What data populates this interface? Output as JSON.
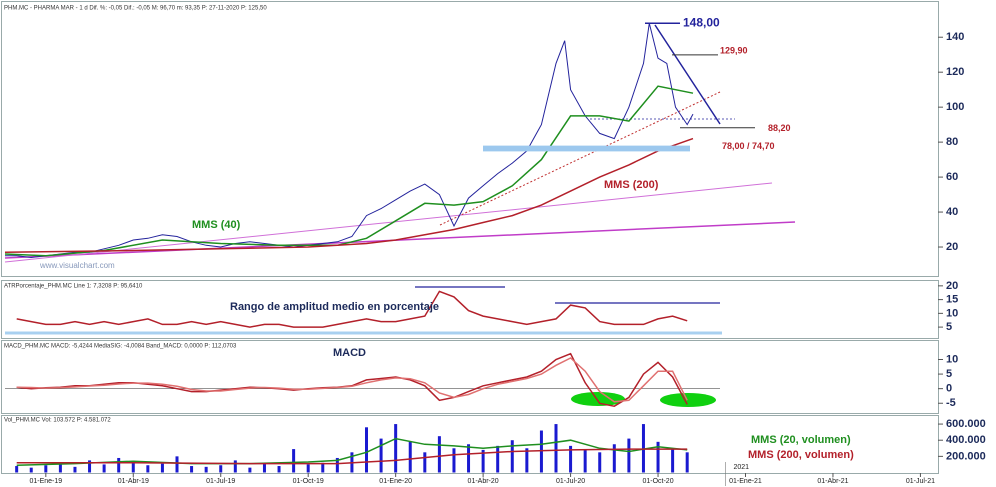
{
  "chart_data": [
    {
      "type": "line",
      "header": "PHM.MC - PHARMA MAR - 1 d Dif. %: -0,05 Dif.: -0,05 M: 96,70 m: 93,35 P: 27-11-2020 P: 125,50",
      "watermark": "www.visualchart.com",
      "ylim": [
        4,
        159
      ],
      "yticks": [
        20,
        40,
        60,
        80,
        100,
        120,
        140
      ],
      "series": [
        {
          "color": "#23239c",
          "x": [
            -1.4,
            -1,
            -0.5,
            0,
            0.5,
            1,
            1.5,
            2,
            2.5,
            3,
            3.5,
            4,
            4.5,
            5,
            5.5,
            6,
            6.5,
            7,
            7.5,
            8,
            8.5,
            9,
            9.5,
            10,
            10.5,
            11,
            11.5,
            12,
            12.5,
            13,
            13.5,
            14,
            14.5,
            15,
            15.5,
            16,
            16.5,
            17,
            17.5,
            17.8,
            18,
            18.5,
            19,
            19.5,
            20,
            20.5,
            20.7,
            21,
            21.3,
            21.6,
            22,
            22.2
          ],
          "values": [
            15,
            15,
            14,
            15,
            16,
            17,
            17,
            19,
            21,
            24,
            25,
            27,
            26,
            23,
            21,
            20,
            22,
            23,
            22,
            21,
            20,
            21,
            22,
            23,
            26,
            38,
            42,
            47,
            52,
            56,
            50,
            32,
            48,
            55,
            62,
            68,
            75,
            90,
            125,
            138,
            110,
            95,
            85,
            82,
            100,
            125,
            148,
            128,
            125,
            100,
            90,
            96
          ]
        },
        {
          "name": "MMS (40)",
          "color": "#1f8f1f",
          "x": [
            -1.4,
            0,
            2,
            4,
            6,
            8,
            10,
            11,
            12,
            13,
            14,
            15,
            16,
            17,
            18,
            19,
            20,
            21,
            22.2
          ],
          "values": [
            16,
            15,
            18,
            24,
            22,
            21,
            21,
            25,
            35,
            45,
            44,
            46,
            55,
            70,
            95,
            95,
            92,
            112,
            108
          ]
        },
        {
          "name": "MMS (200)",
          "color": "#b3202a",
          "x": [
            -1.4,
            3,
            6,
            9,
            11,
            12,
            13,
            14,
            15,
            16,
            17,
            18,
            19,
            20,
            21,
            22.2
          ],
          "values": [
            17,
            18,
            19,
            20,
            22,
            24,
            27,
            30,
            34,
            38,
            44,
            52,
            60,
            67,
            75,
            82
          ]
        }
      ],
      "levels": [
        {
          "label": "148,00",
          "value": 148
        },
        {
          "label": "129,90",
          "value": 129.9
        },
        {
          "label": "88,20",
          "value": 88.2
        }
      ],
      "band": {
        "label": "78,00 / 74,70",
        "values": [
          78,
          74.7
        ]
      }
    },
    {
      "type": "line",
      "header": "ATRPorcentaje_PHM.MC Line 1: 7,3208 P: 95,6410",
      "note": "Rango de amplitud medio en porcentaje",
      "ylim": [
        1.4,
        21.4
      ],
      "yticks": [
        5,
        10,
        15,
        20
      ],
      "series": [
        {
          "color": "#b3202a",
          "x": [
            -1,
            -0.5,
            0,
            0.5,
            1,
            1.5,
            2,
            2.5,
            3,
            3.5,
            4,
            4.5,
            5,
            5.5,
            6,
            6.5,
            7,
            7.5,
            8,
            8.5,
            9,
            9.5,
            10,
            10.5,
            11,
            11.5,
            12,
            12.5,
            13,
            13.5,
            14,
            14.5,
            15,
            15.5,
            16,
            16.5,
            17,
            17.5,
            18,
            18.5,
            19,
            19.5,
            20,
            20.5,
            21,
            21.5,
            22
          ],
          "values": [
            8,
            7,
            6,
            6,
            7,
            6,
            7,
            6,
            7,
            8,
            6,
            6,
            7,
            6,
            7,
            6,
            5,
            6,
            6,
            5,
            5,
            5,
            6,
            7,
            8,
            7,
            7,
            8,
            9,
            18,
            16,
            11,
            9,
            8,
            7,
            6,
            7,
            8,
            13,
            12,
            7,
            6,
            6,
            6,
            8,
            9,
            7.3
          ]
        }
      ]
    },
    {
      "type": "line",
      "header": "MACD_PHM.MC MACD: -5,4244 MediaSIG: -4,0084 Band_MACD: 0,0000 P: 112,0703",
      "note": "MACD",
      "ylim": [
        -8,
        16
      ],
      "yticks": [
        -5,
        0,
        5,
        10
      ],
      "series": [
        {
          "color": "#b3202a",
          "x": [
            -1,
            -0.5,
            0,
            0.5,
            1,
            1.5,
            2,
            2.5,
            3,
            3.5,
            4,
            4.5,
            5,
            5.5,
            6,
            6.5,
            7,
            7.5,
            8,
            8.5,
            9,
            9.5,
            10,
            10.5,
            11,
            11.5,
            12,
            12.5,
            13,
            13.5,
            14,
            14.5,
            15,
            15.5,
            16,
            16.5,
            17,
            17.5,
            18,
            18.5,
            19,
            19.5,
            20,
            20.5,
            21,
            21.5,
            22
          ],
          "values": [
            0.5,
            0,
            0.3,
            0.5,
            1,
            1,
            1.5,
            2,
            2,
            1.5,
            1,
            0,
            -1,
            -1,
            -0.5,
            0,
            0.5,
            0.3,
            0,
            -0.5,
            0,
            0.3,
            0.5,
            1,
            3,
            3.5,
            4,
            3,
            1,
            -4,
            -3,
            -1,
            1,
            2,
            3,
            4,
            6,
            10,
            12,
            2,
            -5,
            -6,
            -3,
            5,
            9,
            4,
            -5.4
          ]
        },
        {
          "color": "#e07070",
          "x": [
            -1,
            -0.5,
            0,
            0.5,
            1,
            1.5,
            2,
            2.5,
            3,
            3.5,
            4,
            4.5,
            5,
            5.5,
            6,
            6.5,
            7,
            7.5,
            8,
            8.5,
            9,
            9.5,
            10,
            10.5,
            11,
            11.5,
            12,
            12.5,
            13,
            13.5,
            14,
            14.5,
            15,
            15.5,
            16,
            16.5,
            17,
            17.5,
            18,
            18.5,
            19,
            19.5,
            20,
            20.5,
            21,
            21.5,
            22
          ],
          "values": [
            0.5,
            0.4,
            0.2,
            0.3,
            0.6,
            0.9,
            1.2,
            1.6,
            1.9,
            1.9,
            1.5,
            0.8,
            -0.3,
            -0.8,
            -0.8,
            -0.3,
            0.2,
            0.4,
            0.2,
            -0.2,
            -0.2,
            0.1,
            0.4,
            0.8,
            2,
            3,
            3.7,
            3.4,
            2,
            -1.5,
            -3,
            -2,
            0,
            1.5,
            2.5,
            3.5,
            5,
            8,
            10.5,
            6,
            -1,
            -4.5,
            -4,
            1,
            6,
            6,
            -4
          ]
        }
      ]
    },
    {
      "type": "bar",
      "header": "Vol_PHM.MC Vol: 103.572 P: 4.581.072",
      "ylim": [
        0,
        700000
      ],
      "yticks": [
        {
          "value": 200000,
          "label": "200.000"
        },
        {
          "value": 400000,
          "label": "400.000"
        },
        {
          "value": 600000,
          "label": "600.000"
        }
      ],
      "xlim": [
        -1.4,
        30.5
      ],
      "xticks": [
        {
          "value": 0,
          "label": "01-Ene-19"
        },
        {
          "value": 3,
          "label": "01-Abr-19"
        },
        {
          "value": 6,
          "label": "01-Jul-19"
        },
        {
          "value": 9,
          "label": "01-Oct-19"
        },
        {
          "value": 12,
          "label": "01-Ene-20"
        },
        {
          "value": 15,
          "label": "01-Abr-20"
        },
        {
          "value": 18,
          "label": "01-Jul-20"
        },
        {
          "value": 21,
          "label": "01-Oct-20"
        },
        {
          "value": 24,
          "label": "01-Ene-21"
        },
        {
          "value": 27,
          "label": "01-Abr-21"
        },
        {
          "value": 30,
          "label": "01-Jul-21"
        }
      ],
      "year_marker": {
        "value": 24,
        "label": "2021"
      },
      "series": [
        {
          "type": "bar",
          "color": "#1a1ad0",
          "x": [
            -1,
            -0.5,
            0,
            0.5,
            1,
            1.5,
            2,
            2.5,
            3,
            3.5,
            4,
            4.5,
            5,
            5.5,
            6,
            6.5,
            7,
            7.5,
            8,
            8.5,
            9,
            9.5,
            10,
            10.5,
            11,
            11.5,
            12,
            12.5,
            13,
            13.5,
            14,
            14.5,
            15,
            15.5,
            16,
            16.5,
            17,
            17.5,
            18,
            18.5,
            19,
            19.5,
            20,
            20.5,
            21,
            21.5,
            22
          ],
          "values": [
            80000,
            60000,
            90000,
            120000,
            70000,
            150000,
            100000,
            180000,
            130000,
            90000,
            110000,
            200000,
            80000,
            70000,
            90000,
            150000,
            60000,
            110000,
            80000,
            290000,
            100000,
            120000,
            180000,
            250000,
            560000,
            420000,
            600000,
            380000,
            250000,
            450000,
            300000,
            350000,
            280000,
            330000,
            400000,
            300000,
            520000,
            600000,
            330000,
            280000,
            250000,
            350000,
            420000,
            600000,
            380000,
            300000,
            250000
          ]
        },
        {
          "type": "line",
          "name": "MMS (20, volumen)",
          "color": "#1f8f1f",
          "x": [
            -1,
            1,
            3,
            5,
            7,
            9,
            10,
            11,
            12,
            13,
            14,
            15,
            16,
            17,
            18,
            19,
            20,
            21,
            22
          ],
          "values": [
            90000,
            110000,
            140000,
            110000,
            110000,
            130000,
            150000,
            250000,
            420000,
            350000,
            330000,
            300000,
            330000,
            350000,
            400000,
            300000,
            260000,
            320000,
            280000
          ]
        },
        {
          "type": "line",
          "name": "MMS (200, volumen)",
          "color": "#b3202a",
          "x": [
            -1,
            3,
            7,
            10,
            12,
            14,
            16,
            18,
            20,
            22
          ],
          "values": [
            120000,
            120000,
            110000,
            110000,
            150000,
            220000,
            260000,
            280000,
            290000,
            290000
          ]
        }
      ]
    }
  ]
}
